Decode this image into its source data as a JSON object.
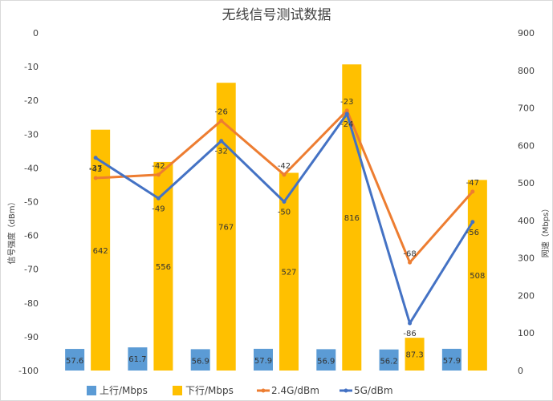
{
  "chart_data": {
    "type": "bar",
    "title": "无线信号测试数据",
    "categories": [
      "",
      "",
      "",
      "",
      "",
      "",
      ""
    ],
    "left_axis": {
      "label": "信号强度（dBm）",
      "range": [
        -100,
        0
      ],
      "ticks": [
        0,
        -10,
        -20,
        -30,
        -40,
        -50,
        -60,
        -70,
        -80,
        -90,
        -100
      ]
    },
    "right_axis": {
      "label": "网速（Mbps）",
      "range": [
        0,
        900
      ],
      "ticks": [
        0,
        100,
        200,
        300,
        400,
        500,
        600,
        700,
        800,
        900
      ]
    },
    "series": [
      {
        "name": "上行/Mbps",
        "type": "bar",
        "axis": "right",
        "color": "#5b9bd5",
        "values": [
          57.6,
          61.7,
          56.9,
          57.9,
          56.9,
          56.2,
          57.9
        ],
        "labels": [
          "57.6",
          "61.7",
          "56.9",
          "57.9",
          "56.9",
          "56.2",
          "57.9"
        ]
      },
      {
        "name": "下行/Mbps",
        "type": "bar",
        "axis": "right",
        "color": "#ffc000",
        "values": [
          642,
          556,
          767,
          527,
          816,
          87.3,
          508
        ],
        "labels": [
          "642",
          "556",
          "767",
          "527",
          "816",
          "87.3",
          "508"
        ]
      },
      {
        "name": "2.4G/dBm",
        "type": "line",
        "axis": "left",
        "color": "#ed7d31",
        "values": [
          -43,
          -42,
          -26,
          -42,
          -23,
          -68,
          -47
        ],
        "labels": [
          "-43",
          "-42",
          "-26",
          "-42",
          "-23",
          "-68",
          "-47"
        ]
      },
      {
        "name": "5G/dBm",
        "type": "line",
        "axis": "left",
        "color": "#4472c4",
        "values": [
          -37,
          -49,
          -32,
          -50,
          -24,
          -86,
          -56
        ],
        "labels": [
          "-37",
          "-49",
          "-32",
          "-50",
          "-24",
          "-86",
          "-56"
        ]
      }
    ],
    "legend_position": "bottom",
    "grid": false
  }
}
